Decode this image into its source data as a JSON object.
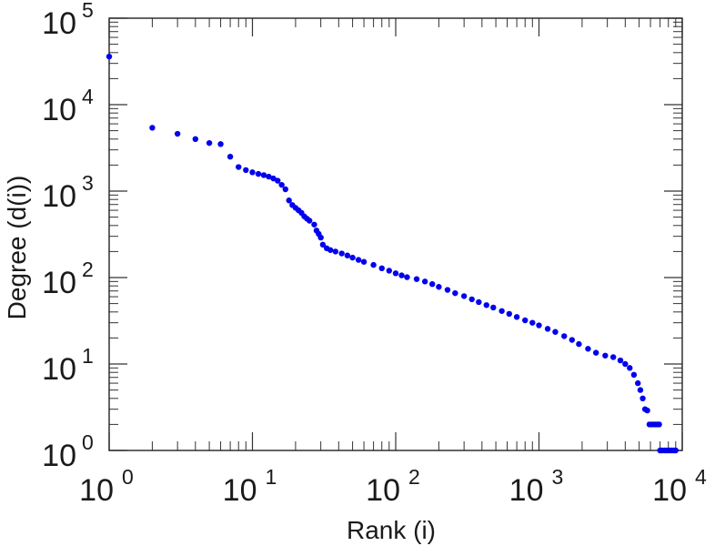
{
  "chart_data": {
    "type": "scatter",
    "title": "",
    "xlabel": "Rank (i)",
    "ylabel": "Degree (d(i))",
    "xscale": "log",
    "yscale": "log",
    "xlim": [
      1,
      10000
    ],
    "ylim": [
      1,
      100000
    ],
    "grid": false,
    "legend": "none",
    "marker_color": "#0000ee",
    "xticks": [
      {
        "base": "10",
        "exp": "0",
        "value": 1
      },
      {
        "base": "10",
        "exp": "1",
        "value": 10
      },
      {
        "base": "10",
        "exp": "2",
        "value": 100
      },
      {
        "base": "10",
        "exp": "3",
        "value": 1000
      },
      {
        "base": "10",
        "exp": "4",
        "value": 10000
      }
    ],
    "yticks": [
      {
        "base": "10",
        "exp": "0",
        "value": 1
      },
      {
        "base": "10",
        "exp": "1",
        "value": 10
      },
      {
        "base": "10",
        "exp": "2",
        "value": 100
      },
      {
        "base": "10",
        "exp": "3",
        "value": 1000
      },
      {
        "base": "10",
        "exp": "4",
        "value": 10000
      },
      {
        "base": "10",
        "exp": "5",
        "value": 100000
      }
    ],
    "series": [
      {
        "points": [
          [
            1,
            36000
          ],
          [
            2,
            5400
          ],
          [
            3,
            4600
          ],
          [
            4,
            4000
          ],
          [
            5,
            3600
          ],
          [
            6,
            3500
          ],
          [
            7,
            2500
          ],
          [
            8,
            1900
          ],
          [
            9,
            1750
          ],
          [
            10,
            1650
          ],
          [
            11,
            1580
          ],
          [
            12,
            1530
          ],
          [
            13,
            1470
          ],
          [
            14,
            1400
          ],
          [
            15,
            1320
          ],
          [
            16,
            1180
          ],
          [
            17,
            1050
          ],
          [
            18,
            780
          ],
          [
            19,
            690
          ],
          [
            20,
            640
          ],
          [
            21,
            600
          ],
          [
            22,
            560
          ],
          [
            23,
            510
          ],
          [
            24,
            480
          ],
          [
            25,
            455
          ],
          [
            27,
            410
          ],
          [
            28,
            350
          ],
          [
            29,
            320
          ],
          [
            30,
            290
          ],
          [
            31,
            240
          ],
          [
            33,
            218
          ],
          [
            35,
            208
          ],
          [
            38,
            200
          ],
          [
            42,
            190
          ],
          [
            46,
            180
          ],
          [
            50,
            170
          ],
          [
            55,
            160
          ],
          [
            60,
            152
          ],
          [
            70,
            140
          ],
          [
            80,
            128
          ],
          [
            90,
            120
          ],
          [
            100,
            112
          ],
          [
            110,
            106
          ],
          [
            120,
            101
          ],
          [
            140,
            96
          ],
          [
            160,
            90
          ],
          [
            180,
            84
          ],
          [
            200,
            78
          ],
          [
            230,
            72
          ],
          [
            260,
            66
          ],
          [
            300,
            61
          ],
          [
            340,
            56
          ],
          [
            380,
            52
          ],
          [
            430,
            48
          ],
          [
            480,
            45
          ],
          [
            550,
            41
          ],
          [
            620,
            38
          ],
          [
            700,
            35
          ],
          [
            800,
            32
          ],
          [
            900,
            30
          ],
          [
            1000,
            28
          ],
          [
            1150,
            25.5
          ],
          [
            1300,
            23.5
          ],
          [
            1500,
            21
          ],
          [
            1700,
            19
          ],
          [
            1900,
            17
          ],
          [
            2200,
            15
          ],
          [
            2500,
            13.5
          ],
          [
            2900,
            12.5
          ],
          [
            3300,
            12
          ],
          [
            3700,
            11
          ],
          [
            4000,
            10
          ],
          [
            4300,
            9
          ],
          [
            4600,
            7.5
          ],
          [
            4900,
            6
          ],
          [
            5100,
            5
          ],
          [
            5300,
            4
          ],
          [
            5500,
            3
          ],
          [
            5700,
            2.9
          ],
          [
            5900,
            2
          ],
          [
            6100,
            2
          ],
          [
            6300,
            2
          ],
          [
            6500,
            2
          ],
          [
            6700,
            2
          ],
          [
            6900,
            2
          ],
          [
            7000,
            1
          ],
          [
            7200,
            1
          ],
          [
            7500,
            1
          ],
          [
            7800,
            1
          ],
          [
            8100,
            1
          ],
          [
            8400,
            1
          ],
          [
            8700,
            1
          ],
          [
            9000,
            1
          ]
        ]
      }
    ]
  }
}
